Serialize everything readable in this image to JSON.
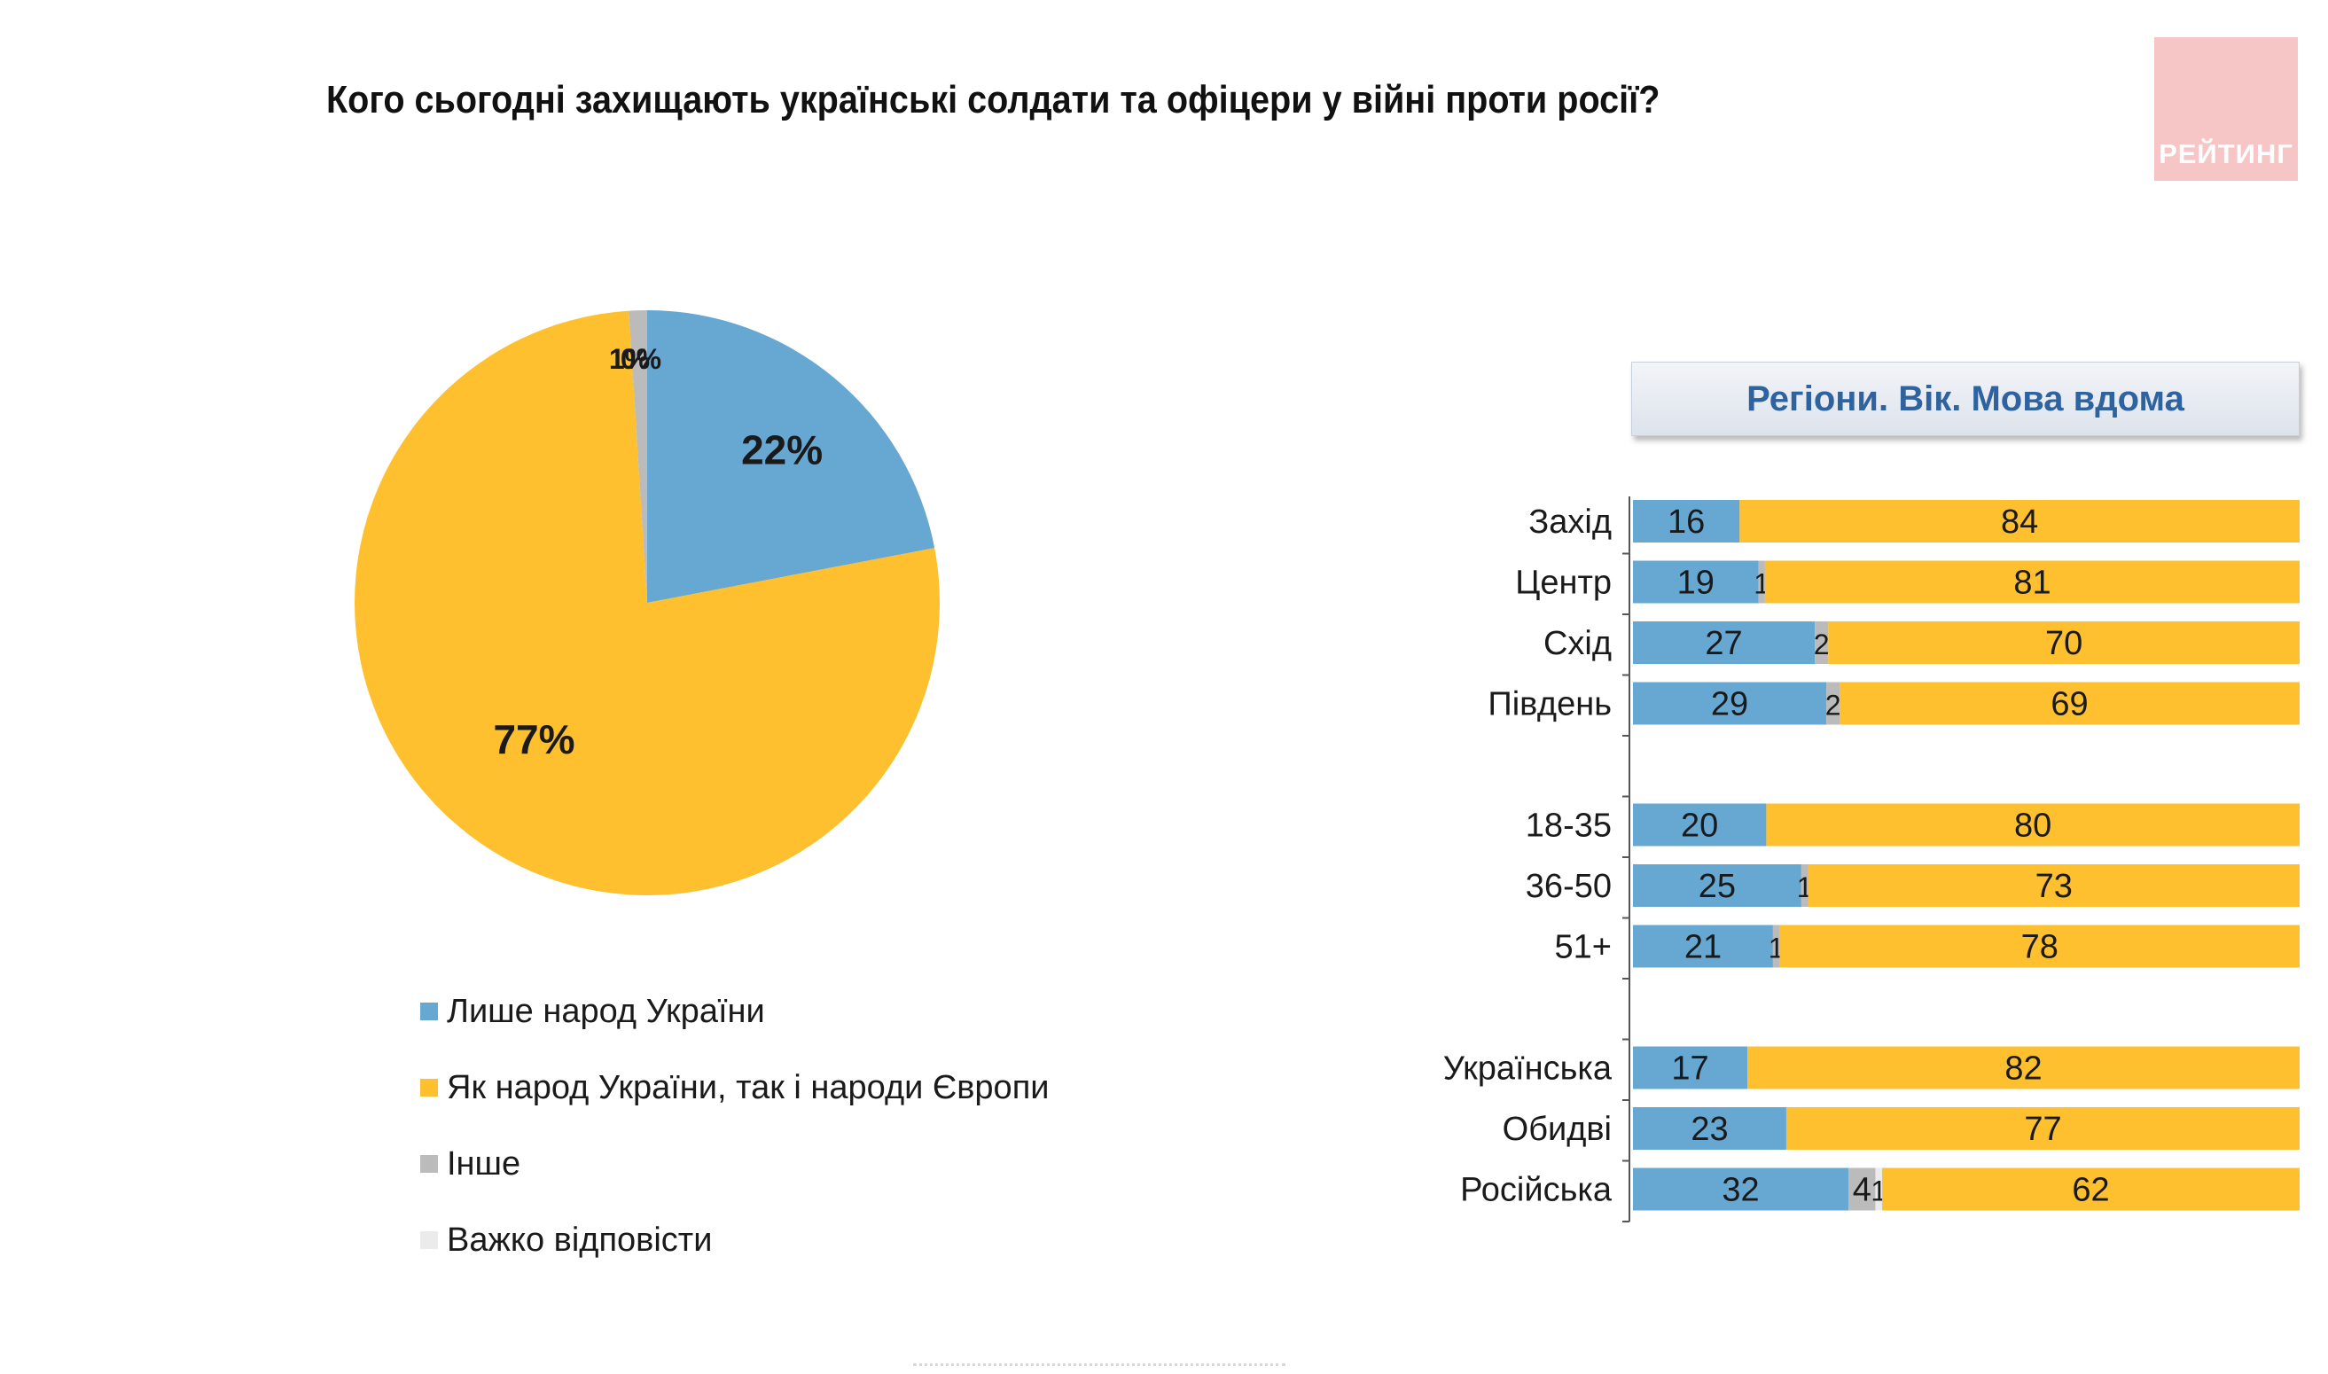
{
  "title": "Кого сьогодні захищають українські солдати та офіцери у війні проти росії?",
  "logo_text": "РЕЙТИНГ",
  "colors": {
    "blue": "#67a8d3",
    "yellow": "#fec02f",
    "gray": "#bbbbbb",
    "lightgray": "#ebebeb"
  },
  "legend": [
    {
      "label": "Лише народ України",
      "color": "#67a8d3"
    },
    {
      "label": "Як народ України, так і народи Європи",
      "color": "#fec02f"
    },
    {
      "label": "Інше",
      "color": "#bbbbbb"
    },
    {
      "label": "Важко відповісти",
      "color": "#ebebeb"
    }
  ],
  "section_header": "Регіони. Вік. Мова вдома",
  "chart_data": [
    {
      "type": "pie",
      "slices": [
        {
          "name": "Лише народ України",
          "value": 22,
          "label": "22%"
        },
        {
          "name": "Як народ України, так і народи Європи",
          "value": 77,
          "label": "77%"
        },
        {
          "name": "Інше",
          "value": 1,
          "label": "1%"
        },
        {
          "name": "Важко відповісти",
          "value": 0,
          "label": "0%"
        }
      ]
    },
    {
      "type": "bar",
      "orientation": "horizontal",
      "stacked": true,
      "xlim": [
        0,
        100
      ],
      "groups": [
        [
          "Захід",
          "Центр",
          "Схід",
          "Південь"
        ],
        [
          "18-35",
          "36-50",
          "51+"
        ],
        [
          "Українська",
          "Обидві",
          "Російська"
        ]
      ],
      "categories": [
        "Захід",
        "Центр",
        "Схід",
        "Південь",
        "18-35",
        "36-50",
        "51+",
        "Українська",
        "Обидві",
        "Російська"
      ],
      "series": [
        {
          "name": "Лише народ України",
          "values": [
            16,
            19,
            27,
            29,
            20,
            25,
            21,
            17,
            23,
            32
          ]
        },
        {
          "name": "Інше",
          "values": [
            0,
            1,
            2,
            2,
            0,
            1,
            1,
            0,
            0,
            4
          ]
        },
        {
          "name": "Важко відповісти",
          "values": [
            0,
            0,
            0,
            0,
            0,
            0,
            0,
            0,
            0,
            1
          ]
        },
        {
          "name": "Як народ України, так і народи Європи",
          "values": [
            84,
            81,
            70,
            69,
            80,
            73,
            78,
            82,
            77,
            62
          ]
        }
      ]
    }
  ]
}
